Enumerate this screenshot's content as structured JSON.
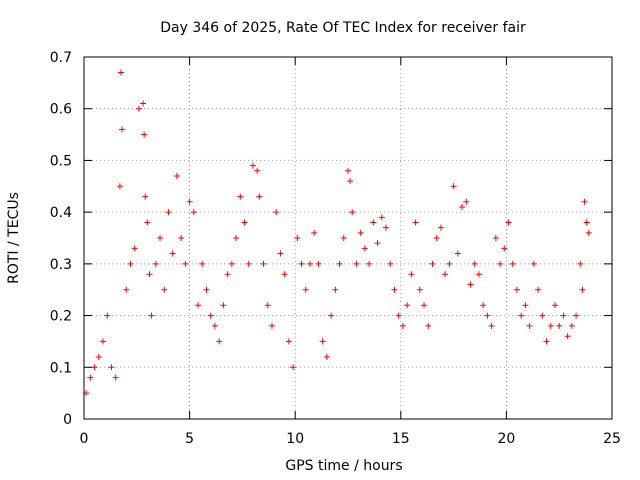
{
  "chart_data": {
    "type": "scatter",
    "title": "Day 346 of 2025, Rate Of TEC Index for receiver fair",
    "xlabel": "GPS time / hours",
    "ylabel": "ROTI / TECUs",
    "xlim": [
      0,
      25
    ],
    "ylim": [
      0,
      0.7
    ],
    "xticks": [
      "0",
      "5",
      "10",
      "15",
      "20",
      "25"
    ],
    "yticks": [
      "0",
      "0.1",
      "0.2",
      "0.3",
      "0.4",
      "0.5",
      "0.6",
      "0.7"
    ],
    "grid": true,
    "marker": "+",
    "series": [
      {
        "color": "#ff0000",
        "x": [
          0.1,
          0.3,
          0.5,
          0.7,
          0.9,
          1.1,
          1.3,
          1.5,
          1.7,
          1.75,
          1.8,
          2.0,
          2.2,
          2.4,
          2.6,
          2.8,
          2.85,
          2.9,
          3.0,
          3.1,
          3.2,
          3.4,
          3.6,
          3.8,
          4.0,
          4.2,
          4.4,
          4.6,
          4.8,
          5.0,
          5.2,
          5.4,
          5.6,
          5.8,
          6.0,
          6.2,
          6.4,
          6.6,
          6.8,
          7.0,
          7.2,
          7.4,
          7.6,
          7.8,
          8.0,
          8.2,
          8.3,
          8.5,
          8.7,
          8.9,
          9.1,
          9.3,
          9.5,
          9.7,
          9.9,
          10.1,
          10.3,
          10.5,
          10.7,
          10.9,
          11.1,
          11.3,
          11.5,
          11.7,
          11.9,
          12.1,
          12.3,
          12.5,
          12.6,
          12.7,
          12.9,
          13.1,
          13.3,
          13.5,
          13.7,
          13.9,
          14.1,
          14.3,
          14.5,
          14.7,
          14.9,
          15.1,
          15.3,
          15.5,
          15.7,
          15.9,
          16.1,
          16.3,
          16.5,
          16.7,
          16.9,
          17.1,
          17.3,
          17.5,
          17.7,
          17.9,
          18.1,
          18.3,
          18.5,
          18.7,
          18.9,
          19.1,
          19.3,
          19.5,
          19.7,
          19.9,
          20.1,
          20.3,
          20.5,
          20.7,
          20.9,
          21.1,
          21.3,
          21.5,
          21.7,
          21.9,
          22.1,
          22.3,
          22.5,
          22.7,
          22.9,
          23.1,
          23.3,
          23.5,
          23.6,
          23.7,
          23.8,
          23.9
        ],
        "y": [
          0.05,
          0.08,
          0.1,
          0.12,
          0.15,
          0.2,
          0.1,
          0.08,
          0.45,
          0.67,
          0.56,
          0.25,
          0.3,
          0.33,
          0.6,
          0.61,
          0.55,
          0.43,
          0.38,
          0.28,
          0.2,
          0.3,
          0.35,
          0.25,
          0.4,
          0.32,
          0.47,
          0.35,
          0.3,
          0.42,
          0.4,
          0.22,
          0.3,
          0.25,
          0.2,
          0.18,
          0.15,
          0.22,
          0.28,
          0.3,
          0.35,
          0.43,
          0.38,
          0.3,
          0.49,
          0.48,
          0.43,
          0.3,
          0.22,
          0.18,
          0.4,
          0.32,
          0.28,
          0.15,
          0.1,
          0.35,
          0.3,
          0.25,
          0.3,
          0.36,
          0.3,
          0.15,
          0.12,
          0.2,
          0.25,
          0.3,
          0.35,
          0.48,
          0.46,
          0.4,
          0.3,
          0.36,
          0.33,
          0.3,
          0.38,
          0.34,
          0.39,
          0.37,
          0.3,
          0.25,
          0.2,
          0.18,
          0.22,
          0.28,
          0.38,
          0.25,
          0.22,
          0.18,
          0.3,
          0.35,
          0.37,
          0.28,
          0.3,
          0.45,
          0.32,
          0.41,
          0.42,
          0.26,
          0.3,
          0.28,
          0.22,
          0.2,
          0.18,
          0.35,
          0.3,
          0.33,
          0.38,
          0.3,
          0.25,
          0.2,
          0.22,
          0.18,
          0.3,
          0.25,
          0.2,
          0.15,
          0.18,
          0.22,
          0.18,
          0.2,
          0.16,
          0.18,
          0.2,
          0.3,
          0.25,
          0.42,
          0.38,
          0.36
        ]
      }
    ]
  }
}
